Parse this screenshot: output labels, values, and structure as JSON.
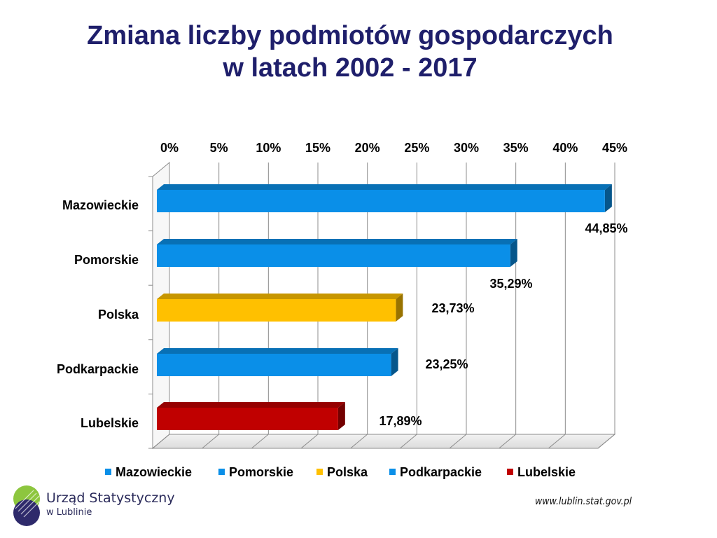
{
  "slide": {
    "title_line1": "Zmiana liczby podmiotów gospodarczych",
    "title_line2": "w latach 2002 - 2017"
  },
  "chart_data": {
    "type": "bar",
    "orientation": "horizontal",
    "categories": [
      "Mazowieckie",
      "Pomorskie",
      "Polska",
      "Podkarpackie",
      "Lubelskie"
    ],
    "values": [
      44.85,
      35.29,
      23.73,
      23.25,
      17.89
    ],
    "value_labels": [
      "44,85%",
      "35,29%",
      "23,73%",
      "23,25%",
      "17,89%"
    ],
    "colors": [
      "#0a8fe8",
      "#0a8fe8",
      "#ffc000",
      "#0a8fe8",
      "#c00000"
    ],
    "xlim": [
      0,
      45
    ],
    "ticks": [
      "0%",
      "5%",
      "10%",
      "15%",
      "20%",
      "25%",
      "30%",
      "35%",
      "40%",
      "45%"
    ],
    "tick_values": [
      0,
      5,
      10,
      15,
      20,
      25,
      30,
      35,
      40,
      45
    ],
    "axis_position": "top",
    "grid": true,
    "legend": {
      "placement": "bottom",
      "entries": [
        "Mazowieckie",
        "Pomorskie",
        "Polska",
        "Podkarpackie",
        "Lubelskie"
      ]
    }
  },
  "footer": {
    "org_name": "Urząd Statystyczny",
    "org_city": "w Lublinie",
    "url": "www.lublin.stat.gov.pl"
  }
}
